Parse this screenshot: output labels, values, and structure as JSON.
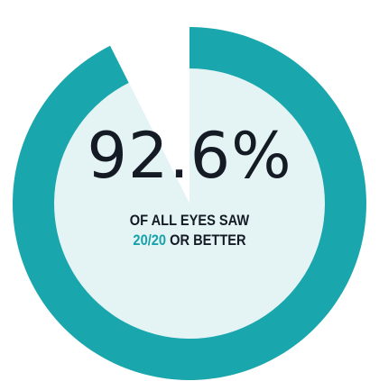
{
  "chart_data": {
    "type": "pie",
    "subtype": "donut",
    "value_percent": 92.6,
    "remainder_percent": 7.4,
    "label": "92.6%",
    "caption_line1": "OF ALL EYES SAW",
    "caption_line2_highlight": "20/20",
    "caption_line2_rest": " OR BETTER"
  },
  "colors": {
    "ring": "#1aa6ad",
    "inner_fill": "#e4f4f5",
    "inner_remainder": "#ffffff",
    "text": "#151b24",
    "accent": "#16a2ab"
  }
}
